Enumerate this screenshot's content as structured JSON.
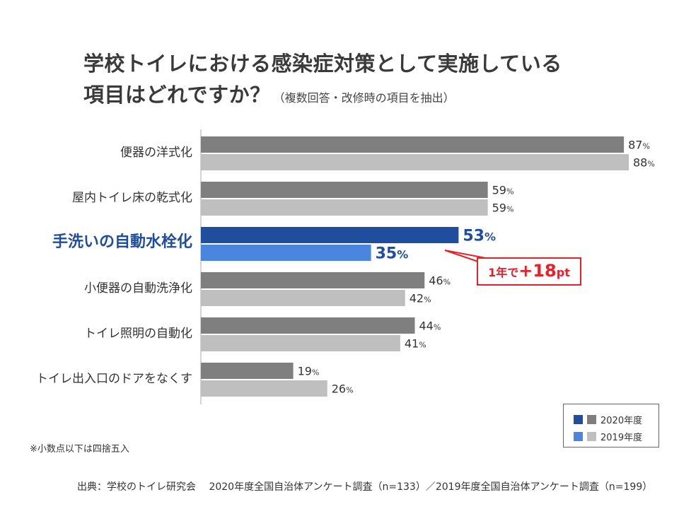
{
  "title": {
    "line1": "学校トイレにおける感染症対策として実施している",
    "line2": "項目はどれですか？",
    "subtitle": "（複数回答・改修時の項目を抽出）"
  },
  "chart_data": {
    "type": "bar",
    "orientation": "horizontal",
    "xlim": [
      0,
      100
    ],
    "unit": "%",
    "categories": [
      "便器の洋式化",
      "屋内トイレ床の乾式化",
      "手洗いの自動水栓化",
      "小便器の自動洗浄化",
      "トイレ照明の自動化",
      "トイレ出入口のドアをなくす"
    ],
    "highlight_category": "手洗いの自動水栓化",
    "series": [
      {
        "name": "2020年度",
        "values": [
          87,
          59,
          53,
          46,
          44,
          19
        ],
        "color": "#7f7f7f",
        "highlight_color": "#1f4e9e"
      },
      {
        "name": "2019年度",
        "values": [
          88,
          59,
          35,
          42,
          41,
          26
        ],
        "color": "#bfbfbf",
        "highlight_color": "#4a86e0"
      }
    ],
    "annotation": {
      "prefix": "1年で",
      "plus": "+",
      "value": "18",
      "unit": "pt"
    },
    "legend_position": "bottom-right"
  },
  "colors": {
    "highlight_label": "#1f4e9e",
    "callout": "#e8202a",
    "axis": "#aaaaaa"
  },
  "note": "※小数点以下は四捨五入",
  "source": "出典：学校のトイレ研究会　 2020年度全国自治体アンケート調査（n=133）／2019年度全国自治体アンケート調査（n=199）"
}
